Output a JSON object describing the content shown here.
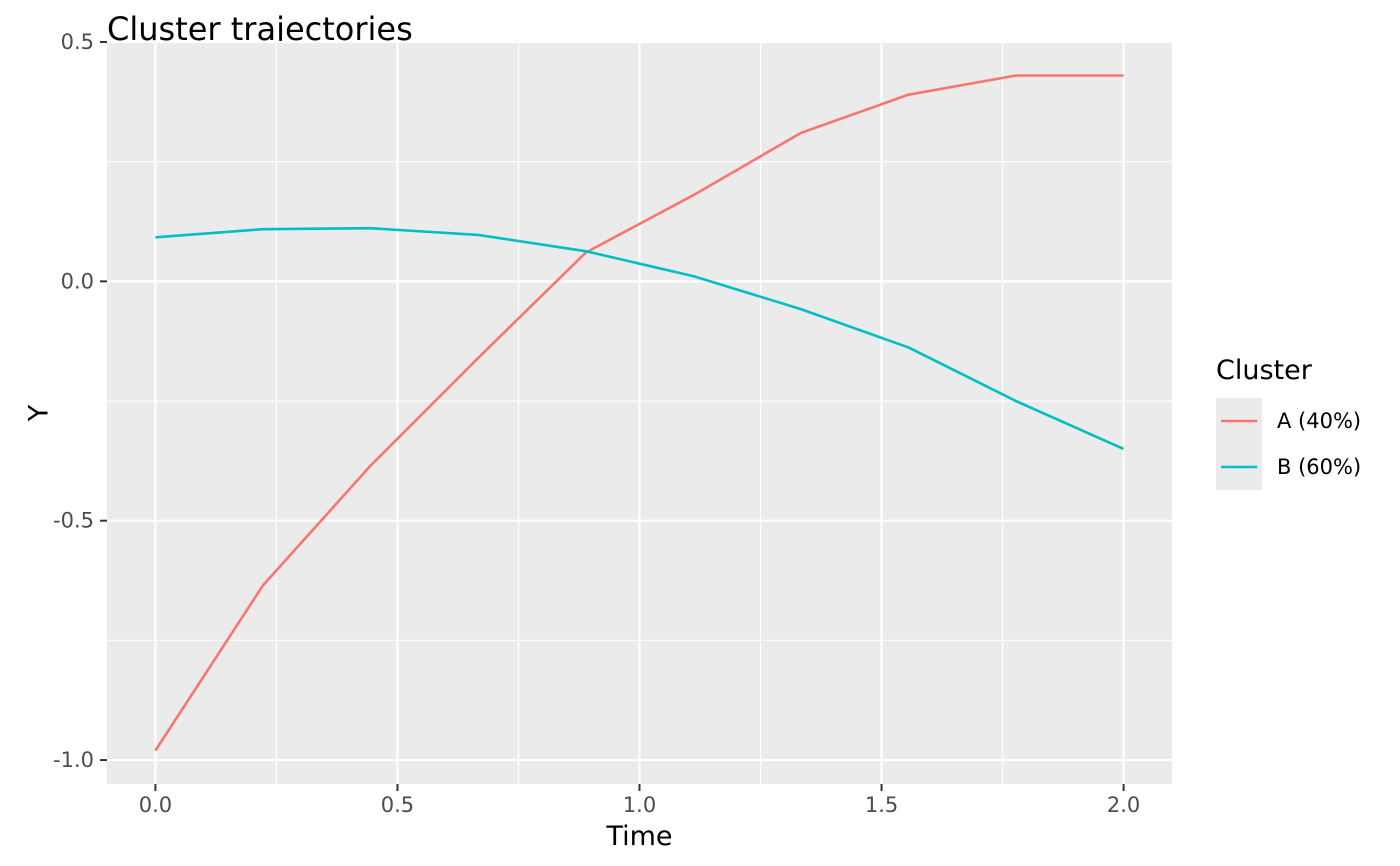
{
  "chart_data": {
    "type": "line",
    "title": "Cluster trajectories",
    "xlabel": "Time",
    "ylabel": "Y",
    "xlim": [
      -0.1,
      2.1
    ],
    "ylim": [
      -1.05,
      0.5
    ],
    "x_ticks": [
      0.0,
      0.5,
      1.0,
      1.5,
      2.0
    ],
    "x_tick_labels": [
      "0.0",
      "0.5",
      "1.0",
      "1.5",
      "2.0"
    ],
    "y_ticks": [
      0.5,
      0.0,
      -0.5,
      -1.0
    ],
    "y_tick_labels": [
      "0.5",
      "0.0",
      "-0.5",
      "-1.0"
    ],
    "grid": true,
    "legend": {
      "title": "Cluster",
      "position": "right"
    },
    "x": [
      0.0,
      0.2222,
      0.4444,
      0.6667,
      0.8889,
      1.1111,
      1.3333,
      1.5556,
      1.7778,
      2.0
    ],
    "series": [
      {
        "name": "A (40%)",
        "color": "#F8766D",
        "values": [
          -0.98,
          -0.635,
          -0.385,
          -0.16,
          0.06,
          0.18,
          0.31,
          0.39,
          0.43,
          0.43
        ]
      },
      {
        "name": "B (60%)",
        "color": "#00BFC4",
        "values": [
          0.092,
          0.109,
          0.111,
          0.097,
          0.063,
          0.011,
          -0.058,
          -0.138,
          -0.25,
          -0.35
        ]
      }
    ],
    "colors": {
      "panel_background": "#EBEBEB",
      "grid_major": "#FFFFFF",
      "tick_text": "#4D4D4D",
      "legend_key_background": "#EBEBEB"
    }
  }
}
